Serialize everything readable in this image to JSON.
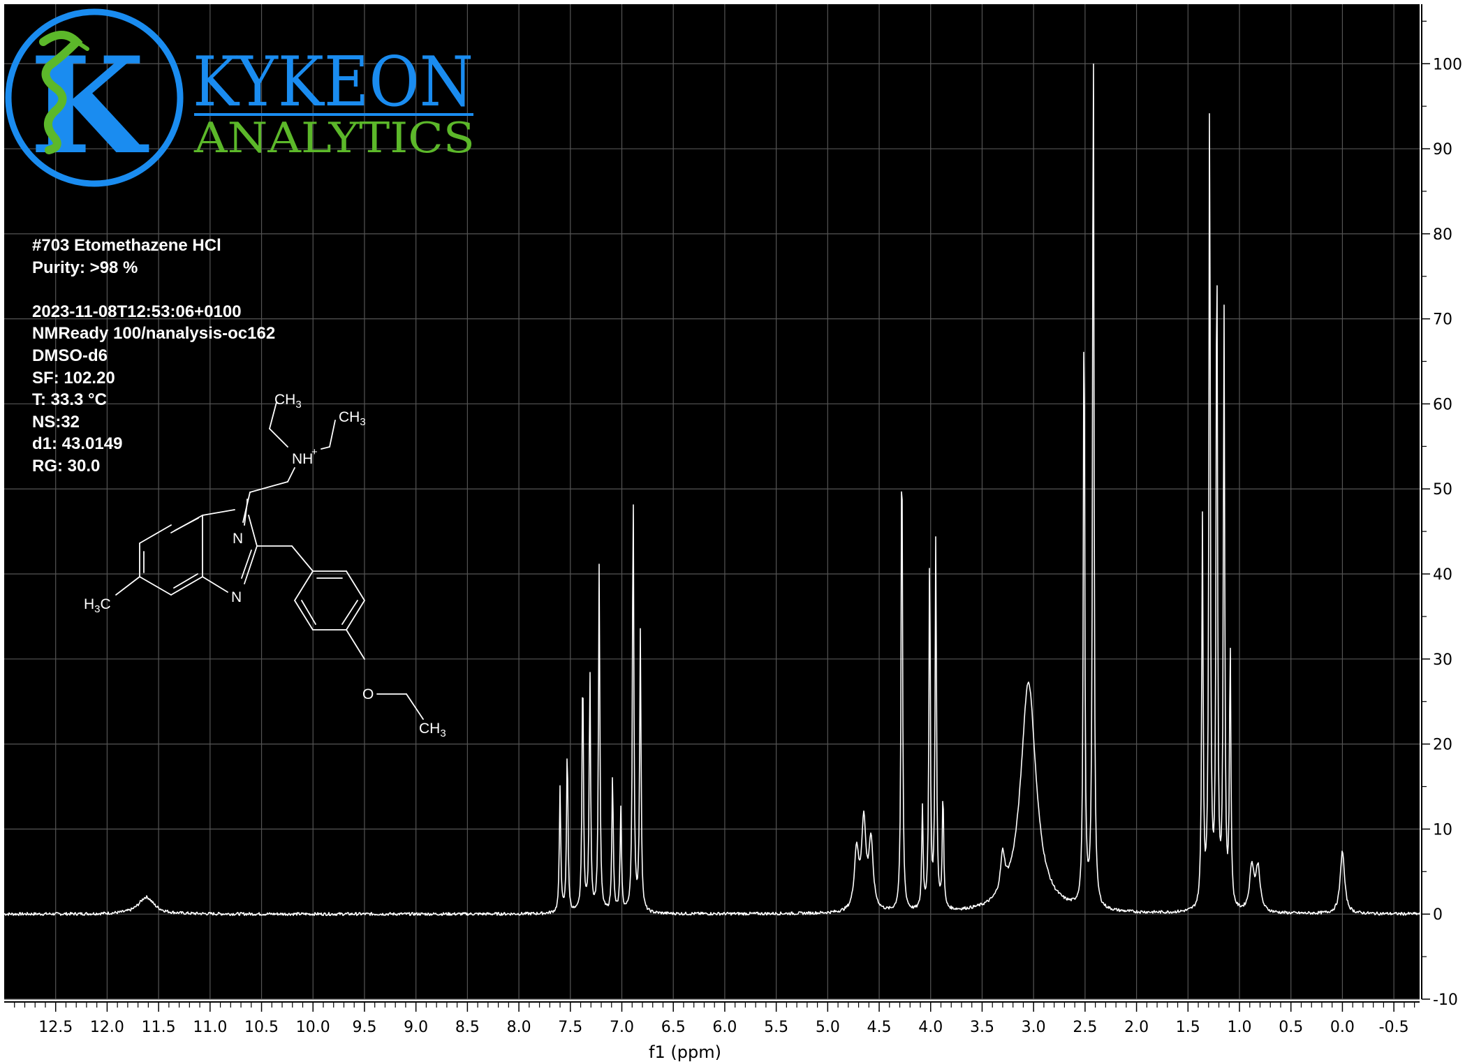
{
  "brand": {
    "name_line1": "KYKEON",
    "name_line2": "ANALYTICS",
    "blue": "#1a8cf0",
    "green": "#5cb82a"
  },
  "sample": {
    "title": "#703 Etomethazene HCl",
    "purity": "Purity: >98 %",
    "timestamp": "2023-11-08T12:53:06+0100",
    "instrument": "NMReady 100/nanalysis-oc162",
    "solvent": "DMSO-d6",
    "sf": "SF: 102.20",
    "temperature": "T: 33.3 °C",
    "ns": "NS:32",
    "d1": "d1: 43.0149",
    "rg": "RG: 30.0"
  },
  "structure": {
    "labels": {
      "ch3_top": "CH3",
      "ch3_right": "CH3",
      "nh": "NH",
      "plus": "+",
      "n1": "N",
      "n3": "N",
      "h3c": "H3C",
      "o": "O",
      "ch3_bottom": "CH3"
    }
  },
  "chart_data": {
    "type": "line",
    "xlabel": "f1 (ppm)",
    "ylabel": "",
    "xlim": [
      13.0,
      -0.75
    ],
    "ylim": [
      -10,
      107
    ],
    "x_reversed": true,
    "x_ticks": [
      "12.5",
      "12.0",
      "11.5",
      "11.0",
      "10.5",
      "10.0",
      "9.5",
      "9.0",
      "8.5",
      "8.0",
      "7.5",
      "7.0",
      "6.5",
      "6.0",
      "5.5",
      "5.0",
      "4.5",
      "4.0",
      "3.5",
      "3.0",
      "2.5",
      "2.0",
      "1.5",
      "1.0",
      "0.5",
      "0.0",
      "-0.5"
    ],
    "y_ticks": [
      "-10",
      "0",
      "10",
      "20",
      "30",
      "40",
      "50",
      "60",
      "70",
      "80",
      "90",
      "100"
    ],
    "grid": true,
    "background": "#000000",
    "line_color": "#ffffff",
    "peaks": [
      {
        "ppm": 11.62,
        "height": 2.0
      },
      {
        "ppm": 7.6,
        "height": 14.8
      },
      {
        "ppm": 7.53,
        "height": 19.8
      },
      {
        "ppm": 7.38,
        "height": 29.2
      },
      {
        "ppm": 7.31,
        "height": 28.2
      },
      {
        "ppm": 7.22,
        "height": 40.7
      },
      {
        "ppm": 7.09,
        "height": 16.4
      },
      {
        "ppm": 7.01,
        "height": 12.0
      },
      {
        "ppm": 6.89,
        "height": 50.0
      },
      {
        "ppm": 6.82,
        "height": 33.0
      },
      {
        "ppm": 4.72,
        "height": 7.0
      },
      {
        "ppm": 4.65,
        "height": 10.3
      },
      {
        "ppm": 4.58,
        "height": 8.0
      },
      {
        "ppm": 4.28,
        "height": 57.5
      },
      {
        "ppm": 4.08,
        "height": 12.0
      },
      {
        "ppm": 4.01,
        "height": 41.6
      },
      {
        "ppm": 3.95,
        "height": 43.6
      },
      {
        "ppm": 3.88,
        "height": 13.8
      },
      {
        "ppm": 3.3,
        "height": 4.5
      },
      {
        "ppm": 3.05,
        "height": 27.2
      },
      {
        "ppm": 2.51,
        "height": 72.4
      },
      {
        "ppm": 2.42,
        "height": 106.0
      },
      {
        "ppm": 1.36,
        "height": 45.8
      },
      {
        "ppm": 1.29,
        "height": 97.0
      },
      {
        "ppm": 1.22,
        "height": 80.3
      },
      {
        "ppm": 1.15,
        "height": 70.0
      },
      {
        "ppm": 1.09,
        "height": 30.8
      },
      {
        "ppm": 0.88,
        "height": 5.3
      },
      {
        "ppm": 0.82,
        "height": 5.1
      },
      {
        "ppm": 0.0,
        "height": 7.4
      }
    ]
  }
}
